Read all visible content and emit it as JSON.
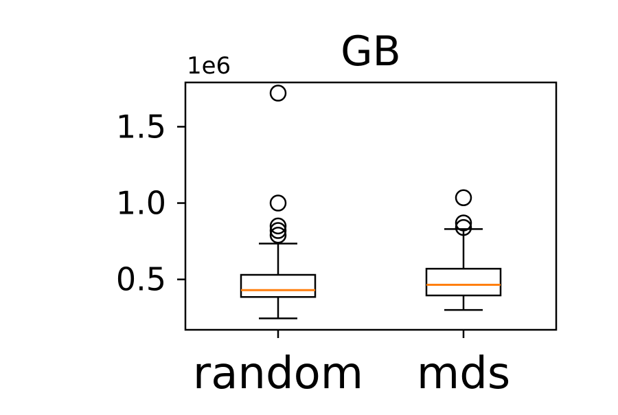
{
  "chart_data": {
    "type": "boxplot",
    "title": "GB",
    "offset_label": "1e6",
    "xlabel": "",
    "ylabel": "",
    "ylim": [
      0.17,
      1.79
    ],
    "yticks": [
      {
        "value": 0.5,
        "label": "0.5"
      },
      {
        "value": 1.0,
        "label": "1.0"
      },
      {
        "value": 1.5,
        "label": "1.5"
      }
    ],
    "categories": [
      "random",
      "mds"
    ],
    "boxes": [
      {
        "name": "random",
        "whisker_low": 0.245,
        "q1": 0.385,
        "median": 0.43,
        "q3": 0.53,
        "whisker_high": 0.735,
        "outliers": [
          0.79,
          0.82,
          0.85,
          1.0,
          1.72
        ]
      },
      {
        "name": "mds",
        "whisker_low": 0.3,
        "q1": 0.395,
        "median": 0.465,
        "q3": 0.57,
        "whisker_high": 0.83,
        "outliers": [
          0.84,
          0.87,
          1.035
        ]
      }
    ],
    "colors": {
      "box": "#000000",
      "median": "#ff7f0e",
      "background": "#ffffff"
    }
  }
}
